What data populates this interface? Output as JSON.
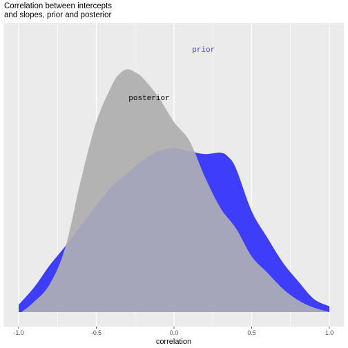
{
  "chart_data": {
    "type": "area",
    "title": "Correlation between intercepts\nand slopes, prior and posterior",
    "title_lines": [
      "Correlation between intercepts",
      "and slopes, prior and posterior"
    ],
    "xlabel": "correlation",
    "ylabel": "",
    "xlim": [
      -1.0,
      1.0
    ],
    "x_ticks": [
      -1.0,
      -0.5,
      0.0,
      0.5,
      1.0
    ],
    "x_tick_labels": [
      "-1.0",
      "-0.5",
      "0.0",
      "0.5",
      "1.0"
    ],
    "y_ticks_shown": false,
    "grid": true,
    "legend": "none",
    "annotations": [
      {
        "text": "prior",
        "x": 0.19,
        "y": 1.78,
        "color": "#3d3df7",
        "family": "mono"
      },
      {
        "text": "posterior",
        "x": -0.16,
        "y": 1.45,
        "color": "#000000",
        "family": "mono"
      }
    ],
    "ylim": [
      -0.1,
      1.95
    ],
    "series": [
      {
        "name": "prior",
        "color": "#3d3dfa",
        "x": [
          -1.0,
          -0.9,
          -0.8,
          -0.7,
          -0.6,
          -0.5,
          -0.4,
          -0.3,
          -0.2,
          -0.1,
          0.0,
          0.1,
          0.2,
          0.3,
          0.35,
          0.4,
          0.5,
          0.6,
          0.7,
          0.8,
          0.9,
          1.0
        ],
        "y": [
          0.05,
          0.17,
          0.32,
          0.45,
          0.59,
          0.73,
          0.86,
          0.95,
          1.04,
          1.1,
          1.12,
          1.1,
          1.08,
          1.09,
          1.06,
          0.98,
          0.69,
          0.51,
          0.34,
          0.21,
          0.09,
          0.04
        ]
      },
      {
        "name": "posterior",
        "color": "#b3b3b3",
        "x": [
          -0.98,
          -0.9,
          -0.8,
          -0.7,
          -0.6,
          -0.5,
          -0.4,
          -0.35,
          -0.3,
          -0.25,
          -0.2,
          -0.1,
          0.0,
          0.1,
          0.2,
          0.3,
          0.4,
          0.5,
          0.6,
          0.7,
          0.8,
          0.9,
          1.0
        ],
        "y": [
          0.0,
          0.07,
          0.19,
          0.44,
          0.9,
          1.3,
          1.55,
          1.63,
          1.66,
          1.64,
          1.6,
          1.47,
          1.3,
          1.17,
          0.92,
          0.71,
          0.57,
          0.38,
          0.27,
          0.16,
          0.08,
          0.03,
          0.0
        ]
      }
    ],
    "overlap_color": "#a6a6bb"
  }
}
